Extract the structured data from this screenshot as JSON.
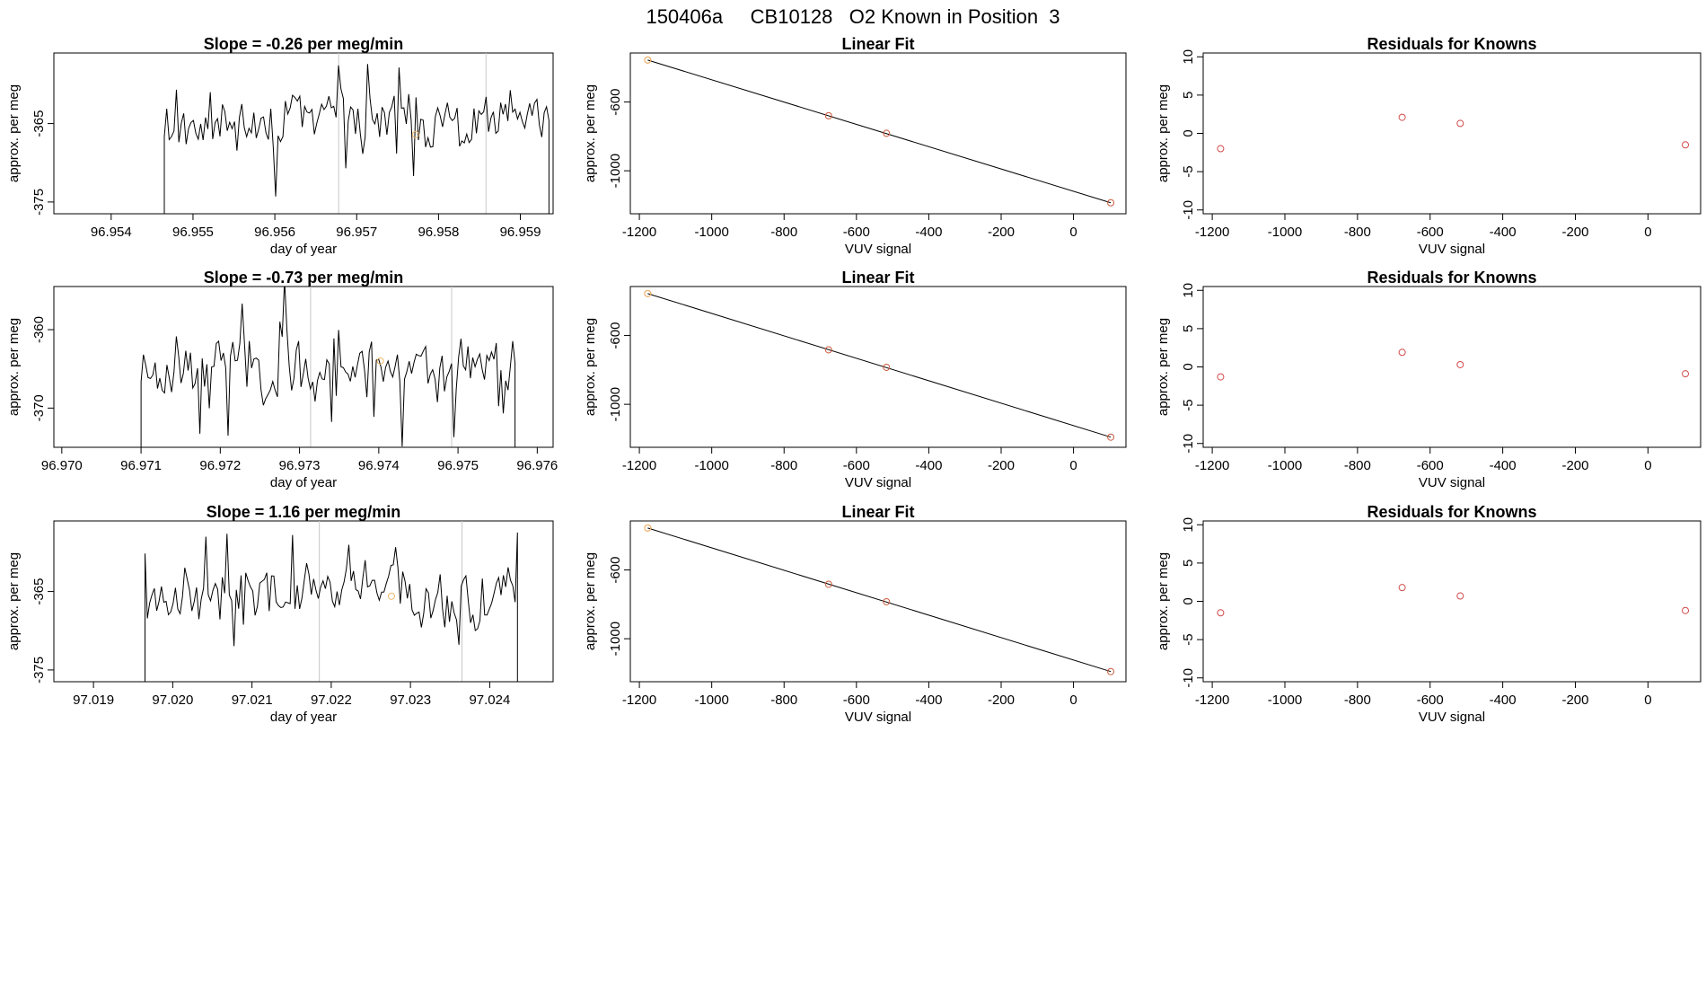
{
  "page_title": "150406a     CB10128   O2 Known in Position  3",
  "colors": {
    "line": "#000000",
    "fit": "#000000",
    "vline": "#c8c8c8",
    "known": "#cc5a3c",
    "mean": "#f0b86a",
    "residual": "#d24a4a"
  },
  "chart_data": [
    {
      "type": "line",
      "title": "Slope =  -0.26  per meg/min",
      "xlabel": "day of year",
      "ylabel": "approx. per meg",
      "xlim": [
        96.9533,
        96.9594
      ],
      "ylim": [
        -376.5,
        -356.0
      ],
      "xticks": [
        "96.954",
        "96.955",
        "96.956",
        "96.957",
        "96.958",
        "96.959"
      ],
      "yticks": [
        "-365",
        "-375"
      ],
      "vlines": [
        96.95678,
        96.95858
      ],
      "mean_point": {
        "x": 96.95772,
        "y": -366.4
      },
      "seed": 11,
      "series": {
        "x_start": 96.95465,
        "x_end": 96.95935,
        "n": 160,
        "base": -364.6,
        "amp": 4.0
      }
    },
    {
      "type": "scatter",
      "title": "Linear Fit",
      "xlabel": "VUV signal",
      "ylabel": "approx. per meg",
      "xlim": [
        -1225,
        145
      ],
      "ylim": [
        -1250,
        -315
      ],
      "xticks": [
        "-1200",
        "-1000",
        "-800",
        "-600",
        "-400",
        "-200",
        "0"
      ],
      "yticks": [
        "-600",
        "-1000"
      ],
      "x": [
        -1177,
        -677,
        -517,
        103
      ],
      "y": [
        -356,
        -680,
        -782,
        -1186
      ],
      "fit": {
        "x": [
          -1177,
          103
        ],
        "y": [
          -356,
          -1186
        ]
      }
    },
    {
      "type": "scatter",
      "title": "Residuals for Knowns",
      "xlabel": "VUV signal",
      "ylabel": "approx. per meg",
      "xlim": [
        -1225,
        145
      ],
      "ylim": [
        -10.5,
        10.5
      ],
      "xticks": [
        "-1200",
        "-1000",
        "-800",
        "-600",
        "-400",
        "-200",
        "0"
      ],
      "yticks": [
        "10",
        "5",
        "0",
        "-5",
        "-10"
      ],
      "x": [
        -1177,
        -677,
        -517,
        103
      ],
      "y": [
        -2.0,
        2.1,
        1.3,
        -1.5
      ]
    },
    {
      "type": "line",
      "title": "Slope =  -0.73  per meg/min",
      "xlabel": "day of year",
      "ylabel": "approx. per meg",
      "xlim": [
        96.9699,
        96.9762
      ],
      "ylim": [
        -375.0,
        -354.5
      ],
      "xticks": [
        "96.970",
        "96.971",
        "96.972",
        "96.973",
        "96.974",
        "96.975",
        "96.976"
      ],
      "yticks": [
        "-360",
        "-370"
      ],
      "vlines": [
        96.97314,
        96.97492
      ],
      "mean_point": {
        "x": 96.97402,
        "y": -364.0
      },
      "seed": 23,
      "series": {
        "x_start": 96.971,
        "x_end": 96.97572,
        "n": 160,
        "base": -364.8,
        "amp": 4.3
      }
    },
    {
      "type": "scatter",
      "title": "Linear Fit",
      "xlabel": "VUV signal",
      "ylabel": "approx. per meg",
      "xlim": [
        -1225,
        145
      ],
      "ylim": [
        -1250,
        -315
      ],
      "xticks": [
        "-1200",
        "-1000",
        "-800",
        "-600",
        "-400",
        "-200",
        "0"
      ],
      "yticks": [
        "-600",
        "-1000"
      ],
      "x": [
        -1177,
        -677,
        -517,
        103
      ],
      "y": [
        -356,
        -683,
        -785,
        -1191
      ],
      "fit": {
        "x": [
          -1177,
          103
        ],
        "y": [
          -356,
          -1191
        ]
      }
    },
    {
      "type": "scatter",
      "title": "Residuals for Knowns",
      "xlabel": "VUV signal",
      "ylabel": "approx. per meg",
      "xlim": [
        -1225,
        145
      ],
      "ylim": [
        -10.5,
        10.5
      ],
      "xticks": [
        "-1200",
        "-1000",
        "-800",
        "-600",
        "-400",
        "-200",
        "0"
      ],
      "yticks": [
        "10",
        "5",
        "0",
        "-5",
        "-10"
      ],
      "x": [
        -1177,
        -677,
        -517,
        103
      ],
      "y": [
        -1.3,
        1.9,
        0.3,
        -0.9
      ]
    },
    {
      "type": "line",
      "title": "Slope =  1.16  per meg/min",
      "xlabel": "day of year",
      "ylabel": "approx. per meg",
      "xlim": [
        97.0185,
        97.0248
      ],
      "ylim": [
        -376.5,
        -356.0
      ],
      "xticks": [
        "97.019",
        "97.020",
        "97.021",
        "97.022",
        "97.023",
        "97.024"
      ],
      "yticks": [
        "-365",
        "-375"
      ],
      "vlines": [
        97.02185,
        97.02365
      ],
      "mean_point": {
        "x": 97.02276,
        "y": -365.6
      },
      "seed": 37,
      "series": {
        "x_start": 97.01965,
        "x_end": 97.02435,
        "n": 160,
        "base": -365.0,
        "amp": 4.1
      }
    },
    {
      "type": "scatter",
      "title": "Linear Fit",
      "xlabel": "VUV signal",
      "ylabel": "approx. per meg",
      "xlim": [
        -1225,
        145
      ],
      "ylim": [
        -1250,
        -315
      ],
      "xticks": [
        "-1200",
        "-1000",
        "-800",
        "-600",
        "-400",
        "-200",
        "0"
      ],
      "yticks": [
        "-600",
        "-1000"
      ],
      "x": [
        -1177,
        -677,
        -517,
        103
      ],
      "y": [
        -356,
        -683,
        -785,
        -1191
      ],
      "fit": {
        "x": [
          -1177,
          103
        ],
        "y": [
          -356,
          -1191
        ]
      }
    },
    {
      "type": "scatter",
      "title": "Residuals for Knowns",
      "xlabel": "VUV signal",
      "ylabel": "approx. per meg",
      "xlim": [
        -1225,
        145
      ],
      "ylim": [
        -10.5,
        10.5
      ],
      "xticks": [
        "-1200",
        "-1000",
        "-800",
        "-600",
        "-400",
        "-200",
        "0"
      ],
      "yticks": [
        "10",
        "5",
        "0",
        "-5",
        "-10"
      ],
      "x": [
        -1177,
        -677,
        -517,
        103
      ],
      "y": [
        -1.5,
        1.8,
        0.7,
        -1.2
      ]
    }
  ]
}
